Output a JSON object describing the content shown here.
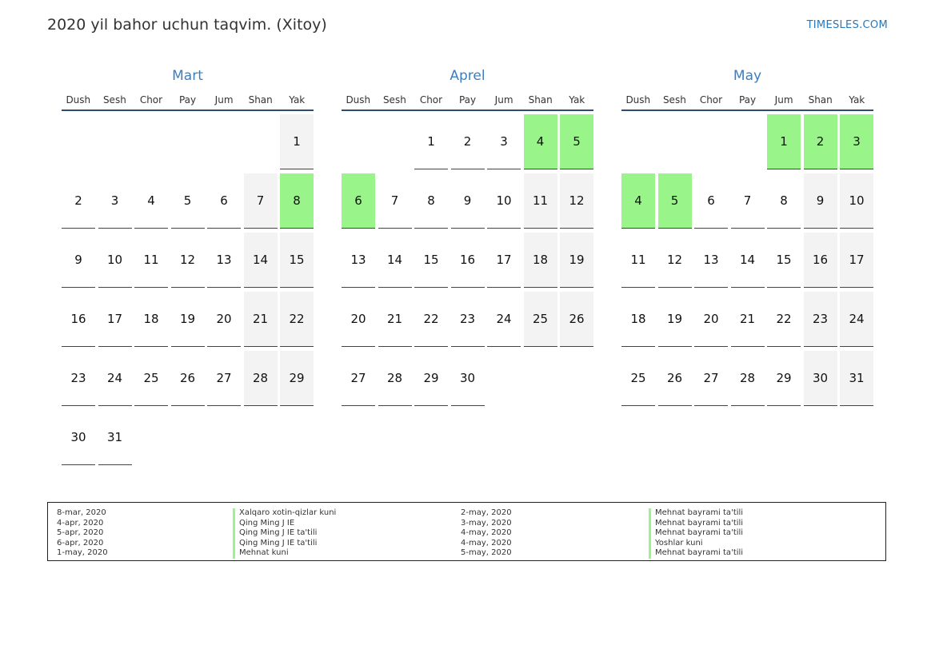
{
  "header": {
    "title": "2020 yil bahor uchun taqvim. (Xitoy)",
    "site": "TIMESLES.COM"
  },
  "colors": {
    "accent": "#3a7fc1",
    "holiday": "#99f58a",
    "weekend": "#f3f3f3"
  },
  "weekday_labels": [
    "Dush",
    "Sesh",
    "Chor",
    "Pay",
    "Jum",
    "Shan",
    "Yak"
  ],
  "months": [
    {
      "name": "Mart",
      "cells": [
        {
          "d": "",
          "t": "empty"
        },
        {
          "d": "",
          "t": "empty"
        },
        {
          "d": "",
          "t": "empty"
        },
        {
          "d": "",
          "t": "empty"
        },
        {
          "d": "",
          "t": "empty"
        },
        {
          "d": "",
          "t": "empty"
        },
        {
          "d": "1",
          "t": "weekend"
        },
        {
          "d": "2",
          "t": "normal"
        },
        {
          "d": "3",
          "t": "normal"
        },
        {
          "d": "4",
          "t": "normal"
        },
        {
          "d": "5",
          "t": "normal"
        },
        {
          "d": "6",
          "t": "normal"
        },
        {
          "d": "7",
          "t": "weekend"
        },
        {
          "d": "8",
          "t": "holiday"
        },
        {
          "d": "9",
          "t": "normal"
        },
        {
          "d": "10",
          "t": "normal"
        },
        {
          "d": "11",
          "t": "normal"
        },
        {
          "d": "12",
          "t": "normal"
        },
        {
          "d": "13",
          "t": "normal"
        },
        {
          "d": "14",
          "t": "weekend"
        },
        {
          "d": "15",
          "t": "weekend"
        },
        {
          "d": "16",
          "t": "normal"
        },
        {
          "d": "17",
          "t": "normal"
        },
        {
          "d": "18",
          "t": "normal"
        },
        {
          "d": "19",
          "t": "normal"
        },
        {
          "d": "20",
          "t": "normal"
        },
        {
          "d": "21",
          "t": "weekend"
        },
        {
          "d": "22",
          "t": "weekend"
        },
        {
          "d": "23",
          "t": "normal"
        },
        {
          "d": "24",
          "t": "normal"
        },
        {
          "d": "25",
          "t": "normal"
        },
        {
          "d": "26",
          "t": "normal"
        },
        {
          "d": "27",
          "t": "normal"
        },
        {
          "d": "28",
          "t": "weekend"
        },
        {
          "d": "29",
          "t": "weekend"
        },
        {
          "d": "30",
          "t": "normal"
        },
        {
          "d": "31",
          "t": "normal"
        }
      ]
    },
    {
      "name": "Aprel",
      "cells": [
        {
          "d": "",
          "t": "empty"
        },
        {
          "d": "",
          "t": "empty"
        },
        {
          "d": "1",
          "t": "normal"
        },
        {
          "d": "2",
          "t": "normal"
        },
        {
          "d": "3",
          "t": "normal"
        },
        {
          "d": "4",
          "t": "holiday"
        },
        {
          "d": "5",
          "t": "holiday"
        },
        {
          "d": "6",
          "t": "holiday"
        },
        {
          "d": "7",
          "t": "normal"
        },
        {
          "d": "8",
          "t": "normal"
        },
        {
          "d": "9",
          "t": "normal"
        },
        {
          "d": "10",
          "t": "normal"
        },
        {
          "d": "11",
          "t": "weekend"
        },
        {
          "d": "12",
          "t": "weekend"
        },
        {
          "d": "13",
          "t": "normal"
        },
        {
          "d": "14",
          "t": "normal"
        },
        {
          "d": "15",
          "t": "normal"
        },
        {
          "d": "16",
          "t": "normal"
        },
        {
          "d": "17",
          "t": "normal"
        },
        {
          "d": "18",
          "t": "weekend"
        },
        {
          "d": "19",
          "t": "weekend"
        },
        {
          "d": "20",
          "t": "normal"
        },
        {
          "d": "21",
          "t": "normal"
        },
        {
          "d": "22",
          "t": "normal"
        },
        {
          "d": "23",
          "t": "normal"
        },
        {
          "d": "24",
          "t": "normal"
        },
        {
          "d": "25",
          "t": "weekend"
        },
        {
          "d": "26",
          "t": "weekend"
        },
        {
          "d": "27",
          "t": "normal"
        },
        {
          "d": "28",
          "t": "normal"
        },
        {
          "d": "29",
          "t": "normal"
        },
        {
          "d": "30",
          "t": "normal"
        }
      ]
    },
    {
      "name": "May",
      "cells": [
        {
          "d": "",
          "t": "empty"
        },
        {
          "d": "",
          "t": "empty"
        },
        {
          "d": "",
          "t": "empty"
        },
        {
          "d": "",
          "t": "empty"
        },
        {
          "d": "1",
          "t": "holiday"
        },
        {
          "d": "2",
          "t": "holiday"
        },
        {
          "d": "3",
          "t": "holiday"
        },
        {
          "d": "4",
          "t": "holiday"
        },
        {
          "d": "5",
          "t": "holiday"
        },
        {
          "d": "6",
          "t": "normal"
        },
        {
          "d": "7",
          "t": "normal"
        },
        {
          "d": "8",
          "t": "normal"
        },
        {
          "d": "9",
          "t": "weekend"
        },
        {
          "d": "10",
          "t": "weekend"
        },
        {
          "d": "11",
          "t": "normal"
        },
        {
          "d": "12",
          "t": "normal"
        },
        {
          "d": "13",
          "t": "normal"
        },
        {
          "d": "14",
          "t": "normal"
        },
        {
          "d": "15",
          "t": "normal"
        },
        {
          "d": "16",
          "t": "weekend"
        },
        {
          "d": "17",
          "t": "weekend"
        },
        {
          "d": "18",
          "t": "normal"
        },
        {
          "d": "19",
          "t": "normal"
        },
        {
          "d": "20",
          "t": "normal"
        },
        {
          "d": "21",
          "t": "normal"
        },
        {
          "d": "22",
          "t": "normal"
        },
        {
          "d": "23",
          "t": "weekend"
        },
        {
          "d": "24",
          "t": "weekend"
        },
        {
          "d": "25",
          "t": "normal"
        },
        {
          "d": "26",
          "t": "normal"
        },
        {
          "d": "27",
          "t": "normal"
        },
        {
          "d": "28",
          "t": "normal"
        },
        {
          "d": "29",
          "t": "normal"
        },
        {
          "d": "30",
          "t": "weekend"
        },
        {
          "d": "31",
          "t": "weekend"
        }
      ]
    }
  ],
  "holidays": {
    "left": [
      {
        "date": "8-mar, 2020",
        "name": "Xalqaro xotin-qizlar kuni"
      },
      {
        "date": "4-apr, 2020",
        "name": "Qing Ming J IE"
      },
      {
        "date": "5-apr, 2020",
        "name": "Qing Ming J IE ta'tili"
      },
      {
        "date": "6-apr, 2020",
        "name": "Qing Ming J IE ta'tili"
      },
      {
        "date": "1-may, 2020",
        "name": "Mehnat kuni"
      }
    ],
    "right": [
      {
        "date": "2-may, 2020",
        "name": "Mehnat bayrami ta'tili"
      },
      {
        "date": "3-may, 2020",
        "name": "Mehnat bayrami ta'tili"
      },
      {
        "date": "4-may, 2020",
        "name": "Mehnat bayrami ta'tili"
      },
      {
        "date": "4-may, 2020",
        "name": "Yoshlar kuni"
      },
      {
        "date": "5-may, 2020",
        "name": "Mehnat bayrami ta'tili"
      }
    ]
  }
}
